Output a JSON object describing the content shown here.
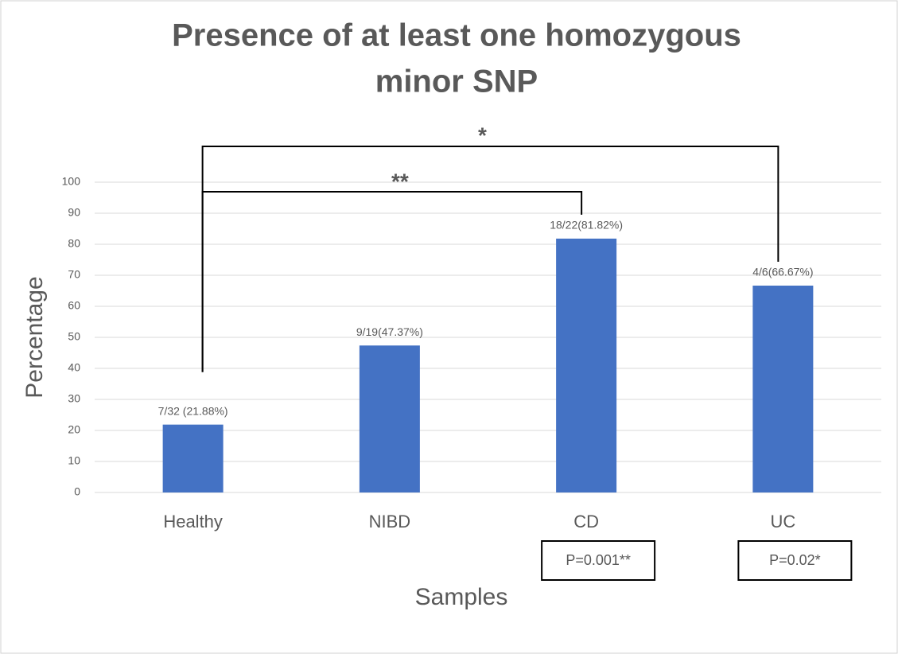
{
  "chart_data": {
    "type": "bar",
    "title": [
      "Presence of at least one homozygous",
      "minor SNP"
    ],
    "x_label": "Samples",
    "y_label": "Percentage",
    "categories": [
      "Healthy",
      "NIBD",
      "CD",
      "UC"
    ],
    "values": [
      21.88,
      47.37,
      81.82,
      66.67
    ],
    "value_labels": [
      "7/32 (21.88%)",
      "9/19(47.37%)",
      "18/22(81.82%)",
      "4/6(66.67%)"
    ],
    "color": "#4472c4",
    "ylim": [
      0,
      100
    ],
    "yticks": [
      0,
      10,
      20,
      30,
      40,
      50,
      60,
      70,
      80,
      90,
      100
    ],
    "grid": true,
    "brackets": [
      {
        "from": "Healthy",
        "to": "CD",
        "text": "**"
      },
      {
        "from": "Healthy",
        "to": "UC",
        "text": "*"
      }
    ],
    "p_boxes": [
      {
        "category": "CD",
        "text": "P=0.001**"
      },
      {
        "category": "UC",
        "text": "P=0.02*"
      }
    ]
  }
}
